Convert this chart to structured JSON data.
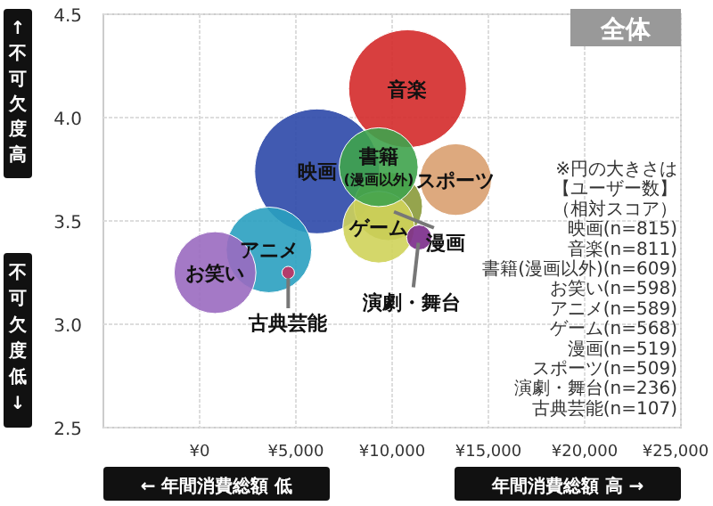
{
  "chart_data": {
    "type": "bubble",
    "title": "全体",
    "xlim": [
      -5000,
      25000
    ],
    "xticks": [
      {
        "value": 0,
        "label": "¥0"
      },
      {
        "value": 5000,
        "label": "¥5,000"
      },
      {
        "value": 10000,
        "label": "¥10,000"
      },
      {
        "value": 15000,
        "label": "¥15,000"
      },
      {
        "value": 20000,
        "label": "¥20,000"
      },
      {
        "value": 25000,
        "label": "¥25,000"
      }
    ],
    "ylim": [
      2.5,
      4.5
    ],
    "yticks": [
      2.5,
      {
        "value": 3,
        "label": "3.0"
      },
      3.5,
      {
        "value": 4,
        "label": "4.0"
      },
      4.5
    ],
    "grid": true,
    "series": [
      {
        "name": "音楽",
        "color": "#d42a2a",
        "x": [
          10800
        ],
        "values": [
          4.14
        ],
        "sizes": [
          0.89
        ]
      },
      {
        "name": "映画",
        "color": "#2c48a8",
        "x": [
          6100
        ],
        "values": [
          3.74
        ],
        "sizes": [
          1
        ]
      },
      {
        "name": "スポーツ",
        "color": "#d9a070",
        "x": [
          13300
        ],
        "values": [
          3.7
        ],
        "sizes": [
          0.33
        ]
      },
      {
        "color": "#8a9a3a",
        "x": [
          9800
        ],
        "values": [
          3.57
        ],
        "sizes": [
          0.3
        ]
      },
      {
        "name": "ゲーム",
        "color": "#cfd35a",
        "x": [
          9300
        ],
        "values": [
          3.47
        ],
        "sizes": [
          0.33
        ]
      },
      {
        "name": "書籍\n(漫画以外)",
        "color": "#3fa34d",
        "x": [
          9300
        ],
        "values": [
          3.76
        ],
        "sizes": [
          0.4
        ]
      },
      {
        "color": "#7a2a8a",
        "x": [
          11400
        ],
        "values": [
          3.42
        ],
        "sizes": [
          0.04
        ]
      },
      {
        "name": "アニメ",
        "color": "#2aa0c0",
        "x": [
          3600
        ],
        "values": [
          3.36
        ],
        "sizes": [
          0.47
        ]
      },
      {
        "name": "お笑い",
        "color": "#9a6ac0",
        "x": [
          800
        ],
        "values": [
          3.25
        ],
        "sizes": [
          0.43
        ]
      },
      {
        "color": "#c03060",
        "x": [
          4600
        ],
        "values": [
          3.25
        ],
        "sizes": [
          0.01
        ]
      }
    ],
    "annotations": [
      "↑不可欠度高",
      "不可欠度低↓",
      "← 年間消費総額 低",
      "年間消費総額 高 →",
      "※円の大きさは",
      "【ユーザー数】",
      "（相対スコア）",
      "映画(n=815)",
      "音楽(n=811)",
      "書籍(漫画以外)(n=609)",
      "お笑い(n=598)",
      "アニメ(n=589)",
      "ゲーム(n=568)",
      "漫画(n=519)",
      "スポーツ(n=509)",
      "演劇・舞台(n=236)",
      "古典芸能(n=107)",
      {
        "text": "漫画",
        "x": 9800,
        "y": 3.57
      },
      {
        "text": "演劇・舞台",
        "x": 11400,
        "y": 3.42
      },
      {
        "text": "古典芸能",
        "x": 4600,
        "y": 3.25
      }
    ]
  }
}
